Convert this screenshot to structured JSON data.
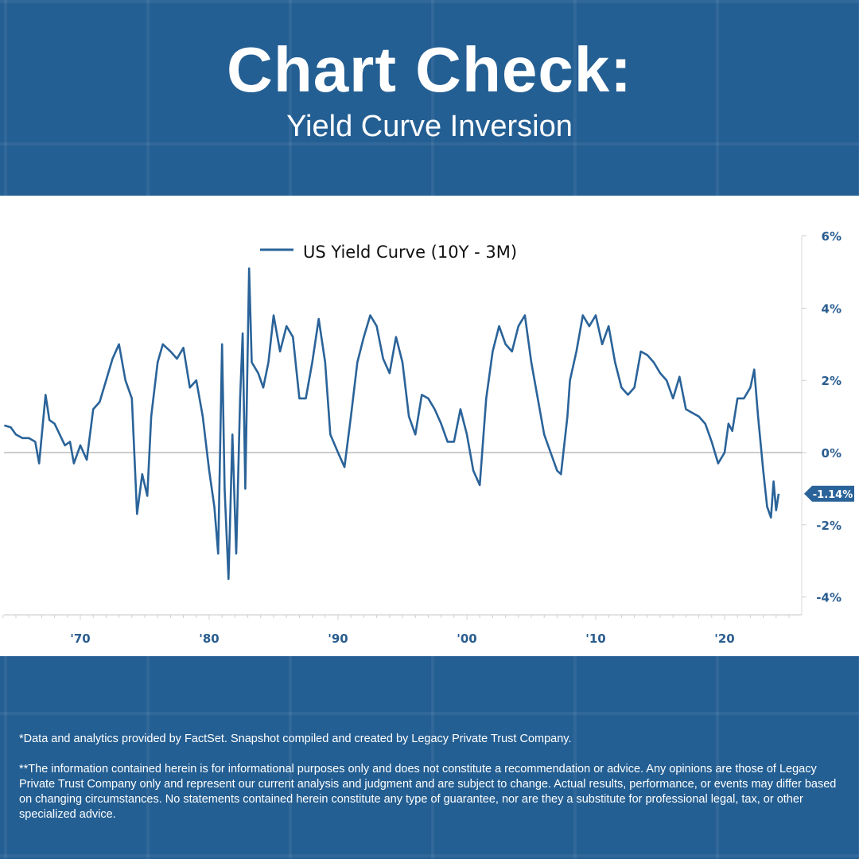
{
  "header": {
    "title": "Chart Check:",
    "subtitle": "Yield Curve Inversion"
  },
  "colors": {
    "background": "#245f93",
    "series": "#2a6399",
    "axis_label": "#2a5d8f"
  },
  "chart_data": {
    "type": "line",
    "title": "",
    "xlabel": "",
    "ylabel": "",
    "legend": {
      "entries": [
        "US Yield Curve (10Y - 3M)"
      ],
      "placement": "top-center"
    },
    "xlim": [
      1964,
      2025.5
    ],
    "ylim": [
      -4.5,
      6
    ],
    "x_ticks": [
      1970,
      1980,
      1990,
      2000,
      2010,
      2020
    ],
    "x_tick_labels": [
      "'70",
      "'80",
      "'90",
      "'00",
      "'10",
      "'20"
    ],
    "y_ticks": [
      6,
      4,
      2,
      0,
      -2,
      -4
    ],
    "y_tick_labels": [
      "6%",
      "4%",
      "2%",
      "0%",
      "-2%",
      "-4%"
    ],
    "axis_side": "right",
    "last_value_label": "-1.14%",
    "series": [
      {
        "name": "US Yield Curve (10Y - 3M)",
        "x": [
          1964.1,
          1964.6,
          1965,
          1965.5,
          1966,
          1966.5,
          1966.8,
          1967.3,
          1967.6,
          1968,
          1968.4,
          1968.8,
          1969.2,
          1969.5,
          1970,
          1970.5,
          1971,
          1971.5,
          1972,
          1972.5,
          1973,
          1973.5,
          1974,
          1974.4,
          1974.8,
          1975.2,
          1975.5,
          1976,
          1976.4,
          1977,
          1977.5,
          1978,
          1978.5,
          1979,
          1979.5,
          1980,
          1980.4,
          1980.7,
          1981,
          1981.2,
          1981.5,
          1981.8,
          1982.1,
          1982.4,
          1982.6,
          1982.8,
          1983.1,
          1983.3,
          1983.8,
          1984.2,
          1984.6,
          1985,
          1985.5,
          1986,
          1986.5,
          1987,
          1987.5,
          1988,
          1988.5,
          1989,
          1989.4,
          1990,
          1990.5,
          1991,
          1991.5,
          1992,
          1992.5,
          1993,
          1993.5,
          1994,
          1994.5,
          1995,
          1995.5,
          1996,
          1996.5,
          1997,
          1997.5,
          1998,
          1998.5,
          1999,
          1999.5,
          2000,
          2000.5,
          2001,
          2001.5,
          2002,
          2002.5,
          2003,
          2003.5,
          2004,
          2004.5,
          2005,
          2005.5,
          2006,
          2006.5,
          2007,
          2007.3,
          2007.8,
          2008,
          2008.5,
          2009,
          2009.5,
          2010,
          2010.5,
          2011,
          2011.5,
          2012,
          2012.5,
          2013,
          2013.5,
          2014,
          2014.5,
          2015,
          2015.5,
          2016,
          2016.5,
          2017,
          2017.5,
          2018,
          2018.5,
          2019,
          2019.5,
          2020,
          2020.3,
          2020.6,
          2021,
          2021.5,
          2022,
          2022.3,
          2022.6,
          2023,
          2023.3,
          2023.6,
          2023.8,
          2024,
          2024.2
        ],
        "values": [
          0.75,
          0.7,
          0.5,
          0.4,
          0.4,
          0.3,
          -0.3,
          1.6,
          0.9,
          0.8,
          0.5,
          0.2,
          0.3,
          -0.3,
          0.2,
          -0.2,
          1.2,
          1.4,
          2.0,
          2.6,
          3.0,
          2.0,
          1.5,
          -1.7,
          -0.6,
          -1.2,
          1.0,
          2.5,
          3.0,
          2.8,
          2.6,
          2.9,
          1.8,
          2.0,
          1.0,
          -0.5,
          -1.5,
          -2.8,
          3.0,
          -1.0,
          -3.5,
          0.5,
          -2.8,
          1.5,
          3.3,
          -1.0,
          5.1,
          2.5,
          2.2,
          1.8,
          2.5,
          3.8,
          2.8,
          3.5,
          3.2,
          1.5,
          1.5,
          2.5,
          3.7,
          2.5,
          0.5,
          0.0,
          -0.4,
          1.0,
          2.5,
          3.2,
          3.8,
          3.5,
          2.6,
          2.2,
          3.2,
          2.5,
          1.0,
          0.5,
          1.6,
          1.5,
          1.2,
          0.8,
          0.3,
          0.3,
          1.2,
          0.5,
          -0.5,
          -0.9,
          1.5,
          2.8,
          3.5,
          3.0,
          2.8,
          3.5,
          3.8,
          2.5,
          1.5,
          0.5,
          0.0,
          -0.5,
          -0.6,
          1.0,
          2.0,
          2.8,
          3.8,
          3.5,
          3.8,
          3.0,
          3.5,
          2.5,
          1.8,
          1.6,
          1.8,
          2.8,
          2.7,
          2.5,
          2.2,
          2.0,
          1.5,
          2.1,
          1.2,
          1.1,
          1.0,
          0.8,
          0.3,
          -0.3,
          0.0,
          0.8,
          0.6,
          1.5,
          1.5,
          1.8,
          2.3,
          1.0,
          -0.5,
          -1.5,
          -1.8,
          -0.8,
          -1.6,
          -1.14
        ]
      }
    ]
  },
  "footer": {
    "source_note": "*Data and analytics provided by FactSet. Snapshot compiled and created by Legacy Private Trust Company.",
    "disclaimer": "**The information contained herein is for informational purposes only and does not constitute a recommendation or advice. Any opinions are those of Legacy Private Trust Company only and represent our current analysis and judgment and are subject to change. Actual results, performance, or events may differ based on changing circumstances. No statements contained herein constitute any type of guarantee, nor are they a substitute for professional legal, tax, or other specialized advice."
  }
}
